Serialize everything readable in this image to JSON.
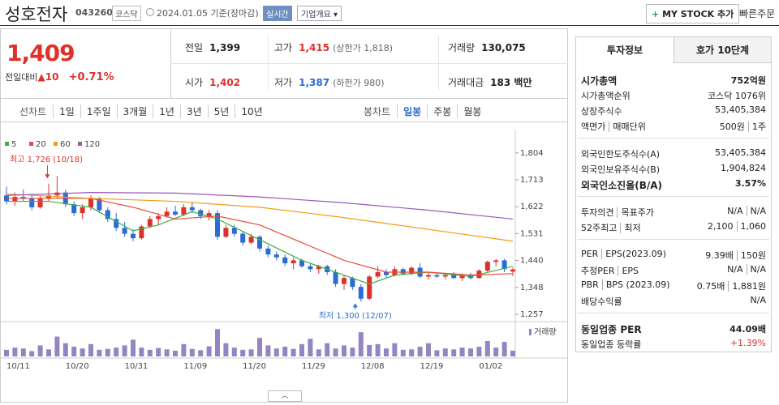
{
  "header": {
    "name": "성호전자",
    "code": "043260",
    "market": "코스닥",
    "date": "2024.01.05 기준(장마감)",
    "realtime": "실시간",
    "overview": "기업개요",
    "mystock": "MY STOCK 추가",
    "order": "빠른주문"
  },
  "price": {
    "current": "1,409",
    "change_label": "전일대비",
    "change": "10",
    "change_pct": "+0.71%"
  },
  "quote": [
    {
      "label": "전일",
      "value": "1,399"
    },
    {
      "label": "고가",
      "value": "1,415",
      "note": "(상한가 1,818)"
    },
    {
      "label": "거래량",
      "value": "130,075"
    },
    {
      "label": "시가",
      "value": "1,402"
    },
    {
      "label": "저가",
      "value": "1,387",
      "note": "(하한가 980)"
    },
    {
      "label": "거래대금",
      "value": "183 백만"
    }
  ],
  "line_periods": {
    "label": "선차트",
    "items": [
      "1일",
      "1주일",
      "3개월",
      "1년",
      "3년",
      "5년",
      "10년"
    ]
  },
  "candle_periods": {
    "label": "봉차트",
    "items": [
      "일봉",
      "주봉",
      "월봉"
    ],
    "selected": 0
  },
  "tabs": {
    "items": [
      "투자정보",
      "호가 10단계"
    ],
    "selected": 0
  },
  "info": [
    [
      {
        "labels": [
          "시가총액"
        ],
        "values": [
          "752억원"
        ],
        "bold": true
      },
      {
        "labels": [
          "시가총액순위"
        ],
        "values": [
          "코스닥 1076위"
        ]
      },
      {
        "labels": [
          "상장주식수"
        ],
        "values": [
          "53,405,384"
        ]
      },
      {
        "labels": [
          "액면가",
          "매매단위"
        ],
        "values": [
          "500원",
          "1주"
        ]
      }
    ],
    [
      {
        "labels": [
          "외국인한도주식수(A)"
        ],
        "values": [
          "53,405,384"
        ]
      },
      {
        "labels": [
          "외국인보유주식수(B)"
        ],
        "values": [
          "1,904,824"
        ]
      },
      {
        "labels": [
          "외국인소진율(B/A)"
        ],
        "values": [
          "3.57%"
        ],
        "bold": true
      }
    ],
    [
      {
        "labels": [
          "투자의견",
          "목표주가"
        ],
        "values": [
          "N/A",
          "N/A"
        ]
      },
      {
        "labels": [
          "52주최고",
          "최저"
        ],
        "values": [
          "2,100",
          "1,060"
        ]
      }
    ],
    [
      {
        "labels": [
          "PER",
          "EPS(2023.09)"
        ],
        "values": [
          "9.39배",
          "150원"
        ]
      },
      {
        "labels": [
          "추정PER",
          "EPS"
        ],
        "values": [
          "N/A",
          "N/A"
        ]
      },
      {
        "labels": [
          "PBR",
          "BPS (2023.09)"
        ],
        "values": [
          "0.75배",
          "1,881원"
        ]
      },
      {
        "labels": [
          "배당수익률"
        ],
        "values": [
          "N/A"
        ]
      }
    ],
    [
      {
        "labels": [
          "동일업종 PER"
        ],
        "values": [
          "44.09배"
        ],
        "bold": true
      },
      {
        "labels": [
          "동일업종 등락률"
        ],
        "values": [
          "+1.39%"
        ],
        "color": "#e0302b"
      }
    ]
  ],
  "chart_data": {
    "type": "candlestick",
    "categories": [
      null,
      "10/11",
      null,
      null,
      null,
      null,
      null,
      null,
      "10/20",
      null,
      null,
      null,
      null,
      null,
      null,
      "10/31",
      null,
      null,
      null,
      null,
      null,
      null,
      "11/09",
      null,
      null,
      null,
      null,
      null,
      null,
      "11/20",
      null,
      null,
      null,
      null,
      null,
      null,
      "11/29",
      null,
      null,
      null,
      null,
      null,
      null,
      "12/08",
      null,
      null,
      null,
      null,
      null,
      null,
      "12/19",
      null,
      null,
      null,
      null,
      null,
      null,
      "01/02",
      null,
      null,
      null
    ],
    "ohlc": [
      [
        1660,
        1690,
        1630,
        1640
      ],
      [
        1640,
        1670,
        1625,
        1655
      ],
      [
        1655,
        1680,
        1640,
        1650
      ],
      [
        1650,
        1665,
        1610,
        1620
      ],
      [
        1620,
        1660,
        1615,
        1650
      ],
      [
        1650,
        1700,
        1640,
        1660
      ],
      [
        1660,
        1726,
        1650,
        1670
      ],
      [
        1670,
        1680,
        1620,
        1630
      ],
      [
        1630,
        1640,
        1590,
        1600
      ],
      [
        1600,
        1630,
        1580,
        1620
      ],
      [
        1620,
        1660,
        1610,
        1650
      ],
      [
        1650,
        1655,
        1600,
        1610
      ],
      [
        1610,
        1620,
        1570,
        1580
      ],
      [
        1580,
        1600,
        1540,
        1550
      ],
      [
        1550,
        1570,
        1520,
        1530
      ],
      [
        1530,
        1545,
        1505,
        1515
      ],
      [
        1515,
        1560,
        1510,
        1555
      ],
      [
        1555,
        1590,
        1550,
        1580
      ],
      [
        1580,
        1600,
        1560,
        1590
      ],
      [
        1590,
        1620,
        1585,
        1605
      ],
      [
        1605,
        1625,
        1590,
        1595
      ],
      [
        1595,
        1630,
        1590,
        1620
      ],
      [
        1620,
        1635,
        1600,
        1610
      ],
      [
        1610,
        1615,
        1580,
        1590
      ],
      [
        1590,
        1610,
        1575,
        1600
      ],
      [
        1600,
        1610,
        1510,
        1520
      ],
      [
        1520,
        1560,
        1515,
        1550
      ],
      [
        1550,
        1560,
        1520,
        1530
      ],
      [
        1530,
        1540,
        1490,
        1500
      ],
      [
        1500,
        1530,
        1495,
        1520
      ],
      [
        1520,
        1525,
        1470,
        1480
      ],
      [
        1480,
        1490,
        1450,
        1460
      ],
      [
        1460,
        1470,
        1440,
        1450
      ],
      [
        1450,
        1460,
        1420,
        1430
      ],
      [
        1430,
        1450,
        1410,
        1440
      ],
      [
        1440,
        1445,
        1415,
        1420
      ],
      [
        1420,
        1430,
        1400,
        1410
      ],
      [
        1410,
        1425,
        1395,
        1420
      ],
      [
        1420,
        1425,
        1390,
        1400
      ],
      [
        1400,
        1410,
        1350,
        1360
      ],
      [
        1360,
        1390,
        1340,
        1380
      ],
      [
        1380,
        1385,
        1340,
        1350
      ],
      [
        1350,
        1360,
        1300,
        1310
      ],
      [
        1310,
        1390,
        1305,
        1385
      ],
      [
        1385,
        1420,
        1380,
        1400
      ],
      [
        1400,
        1410,
        1380,
        1390
      ],
      [
        1390,
        1420,
        1385,
        1410
      ],
      [
        1410,
        1415,
        1390,
        1395
      ],
      [
        1395,
        1420,
        1390,
        1415
      ],
      [
        1415,
        1430,
        1380,
        1385
      ],
      [
        1385,
        1400,
        1375,
        1390
      ],
      [
        1390,
        1395,
        1380,
        1385
      ],
      [
        1385,
        1395,
        1375,
        1390
      ],
      [
        1390,
        1400,
        1378,
        1380
      ],
      [
        1380,
        1395,
        1370,
        1390
      ],
      [
        1390,
        1398,
        1375,
        1380
      ],
      [
        1380,
        1410,
        1378,
        1405
      ],
      [
        1405,
        1440,
        1400,
        1435
      ],
      [
        1435,
        1445,
        1420,
        1440
      ],
      [
        1440,
        1445,
        1400,
        1410
      ],
      [
        1402,
        1415,
        1387,
        1409
      ]
    ],
    "up_color": "#e0302b",
    "down_color": "#2a6bd6",
    "volume": [
      150000,
      200000,
      180000,
      120000,
      250000,
      160000,
      450000,
      300000,
      220000,
      180000,
      280000,
      150000,
      170000,
      200000,
      250000,
      380000,
      200000,
      150000,
      190000,
      160000,
      130000,
      280000,
      170000,
      140000,
      230000,
      620000,
      300000,
      200000,
      150000,
      160000,
      420000,
      250000,
      180000,
      220000,
      170000,
      280000,
      400000,
      160000,
      300000,
      180000,
      250000,
      200000,
      550000,
      260000,
      280000,
      180000,
      300000,
      150000,
      160000,
      220000,
      300000,
      140000,
      180000,
      160000,
      200000,
      180000,
      220000,
      350000,
      200000,
      330000,
      130075
    ],
    "volume_label": "거래량",
    "volume_color": "#9485c2",
    "vlim": [
      0,
      700000
    ],
    "series": [
      {
        "name": "5",
        "color": "#3cb043",
        "x": [
          0,
          5,
          10,
          15,
          18,
          22,
          25,
          30,
          35,
          40,
          43,
          46,
          50,
          55,
          60
        ],
        "values": [
          1640,
          1640,
          1620,
          1540,
          1560,
          1605,
          1580,
          1510,
          1440,
          1390,
          1360,
          1390,
          1400,
          1385,
          1420
        ]
      },
      {
        "name": "20",
        "color": "#e74c3c",
        "x": [
          0,
          10,
          15,
          20,
          25,
          30,
          35,
          40,
          45,
          50,
          55,
          60
        ],
        "values": [
          1650,
          1650,
          1620,
          1580,
          1590,
          1560,
          1500,
          1440,
          1400,
          1400,
          1390,
          1395
        ]
      },
      {
        "name": "60",
        "color": "#f39c12",
        "x": [
          0,
          10,
          20,
          30,
          40,
          50,
          60
        ],
        "values": [
          1665,
          1650,
          1640,
          1620,
          1585,
          1545,
          1505
        ]
      },
      {
        "name": "120",
        "color": "#9b59b6",
        "x": [
          0,
          10,
          20,
          30,
          40,
          50,
          60
        ],
        "values": [
          1660,
          1670,
          1668,
          1655,
          1635,
          1610,
          1580
        ]
      }
    ],
    "ylim": [
      1238,
      1820
    ],
    "yticks": [
      {
        "value": 1257,
        "label": "1,257"
      },
      {
        "value": 1348,
        "label": "1,348"
      },
      {
        "value": 1440,
        "label": "1,440"
      },
      {
        "value": 1531,
        "label": "1,531"
      },
      {
        "value": 1622,
        "label": "1,622"
      },
      {
        "value": 1713,
        "label": "1,713"
      },
      {
        "value": 1804,
        "label": "1,804"
      }
    ],
    "grid": false,
    "annotations": [
      {
        "label": "최고 1,726 (10/18)",
        "x": 6,
        "value": 1726,
        "color": "#e0302b",
        "position": "above"
      },
      {
        "label": "최저 1,300 (12/07)",
        "x": 42,
        "value": 1300,
        "color": "#2a6bd6",
        "position": "below"
      }
    ]
  }
}
